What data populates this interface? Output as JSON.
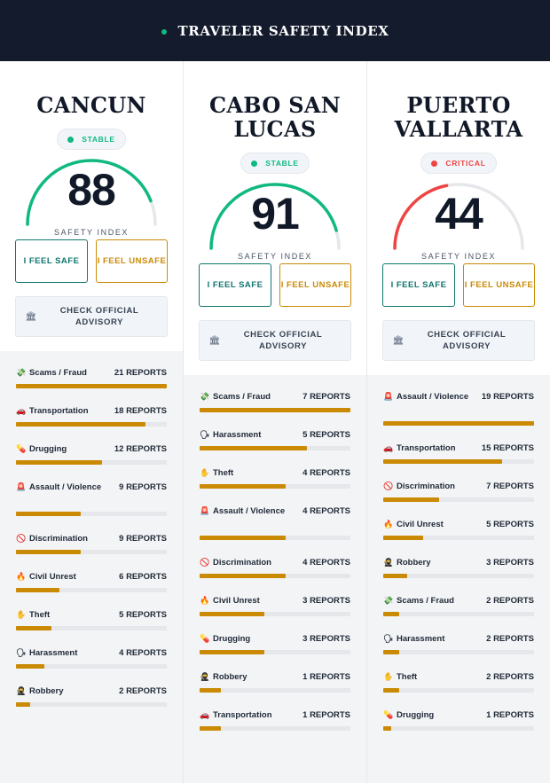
{
  "header": {
    "title": "TRAVELER SAFETY INDEX"
  },
  "colors": {
    "stable": "#10b981",
    "critical": "#ef4444",
    "bar": "#ca8a04",
    "track": "#e5e7eb"
  },
  "cities": [
    {
      "name": "CANCUN",
      "status": "STABLE",
      "status_type": "stable",
      "score": "88",
      "score_value": 88,
      "safety_label": "SAFETY INDEX",
      "feel_safe": "I FEEL SAFE",
      "feel_unsafe": "I FEEL UNSAFE",
      "advisory": "CHECK OFFICIAL ADVISORY",
      "advisory_icon": "bank-icon",
      "reports": [
        {
          "icon": "money-icon",
          "glyph": "💸",
          "label": "Scams / Fraud",
          "count": "21 REPORTS",
          "value": 21
        },
        {
          "icon": "car-icon",
          "glyph": "🚗",
          "label": "Transportation",
          "count": "18 REPORTS",
          "value": 18
        },
        {
          "icon": "pill-icon",
          "glyph": "💊",
          "label": "Drugging",
          "count": "12 REPORTS",
          "value": 12
        },
        {
          "icon": "alert-icon",
          "glyph": "🚨",
          "label": "Assault / Violence",
          "count": "9 REPORTS",
          "value": 9
        },
        {
          "icon": "prohibited-icon",
          "glyph": "🚫",
          "label": "Discrimination",
          "count": "9 REPORTS",
          "value": 9
        },
        {
          "icon": "fire-icon",
          "glyph": "🔥",
          "label": "Civil Unrest",
          "count": "6 REPORTS",
          "value": 6
        },
        {
          "icon": "hand-icon",
          "glyph": "✋",
          "label": "Theft",
          "count": "5 REPORTS",
          "value": 5
        },
        {
          "icon": "speaking-head-icon",
          "glyph": "🗣",
          "label": "Harassment",
          "count": "4 REPORTS",
          "value": 4
        },
        {
          "icon": "ninja-icon",
          "glyph": "🥷",
          "label": "Robbery",
          "count": "2 REPORTS",
          "value": 2
        }
      ]
    },
    {
      "name": "CABO SAN LUCAS",
      "status": "STABLE",
      "status_type": "stable",
      "score": "91",
      "score_value": 91,
      "safety_label": "SAFETY INDEX",
      "feel_safe": "I FEEL SAFE",
      "feel_unsafe": "I FEEL UNSAFE",
      "advisory": "CHECK OFFICIAL ADVISORY",
      "advisory_icon": "bank-icon",
      "reports": [
        {
          "icon": "money-icon",
          "glyph": "💸",
          "label": "Scams / Fraud",
          "count": "7 REPORTS",
          "value": 7
        },
        {
          "icon": "speaking-head-icon",
          "glyph": "🗣",
          "label": "Harassment",
          "count": "5 REPORTS",
          "value": 5
        },
        {
          "icon": "hand-icon",
          "glyph": "✋",
          "label": "Theft",
          "count": "4 REPORTS",
          "value": 4
        },
        {
          "icon": "alert-icon",
          "glyph": "🚨",
          "label": "Assault / Violence",
          "count": "4 REPORTS",
          "value": 4
        },
        {
          "icon": "prohibited-icon",
          "glyph": "🚫",
          "label": "Discrimination",
          "count": "4 REPORTS",
          "value": 4
        },
        {
          "icon": "fire-icon",
          "glyph": "🔥",
          "label": "Civil Unrest",
          "count": "3 REPORTS",
          "value": 3
        },
        {
          "icon": "pill-icon",
          "glyph": "💊",
          "label": "Drugging",
          "count": "3 REPORTS",
          "value": 3
        },
        {
          "icon": "ninja-icon",
          "glyph": "🥷",
          "label": "Robbery",
          "count": "1 REPORTS",
          "value": 1
        },
        {
          "icon": "car-icon",
          "glyph": "🚗",
          "label": "Transportation",
          "count": "1 REPORTS",
          "value": 1
        }
      ]
    },
    {
      "name": "PUERTO VALLARTA",
      "status": "CRITICAL",
      "status_type": "critical",
      "score": "44",
      "score_value": 44,
      "safety_label": "SAFETY INDEX",
      "feel_safe": "I FEEL SAFE",
      "feel_unsafe": "I FEEL UNSAFE",
      "advisory": "CHECK OFFICIAL ADVISORY",
      "advisory_icon": "bank-icon",
      "reports": [
        {
          "icon": "alert-icon",
          "glyph": "🚨",
          "label": "Assault / Violence",
          "count": "19 REPORTS",
          "value": 19
        },
        {
          "icon": "car-icon",
          "glyph": "🚗",
          "label": "Transportation",
          "count": "15 REPORTS",
          "value": 15
        },
        {
          "icon": "prohibited-icon",
          "glyph": "🚫",
          "label": "Discrimination",
          "count": "7 REPORTS",
          "value": 7
        },
        {
          "icon": "fire-icon",
          "glyph": "🔥",
          "label": "Civil Unrest",
          "count": "5 REPORTS",
          "value": 5
        },
        {
          "icon": "ninja-icon",
          "glyph": "🥷",
          "label": "Robbery",
          "count": "3 REPORTS",
          "value": 3
        },
        {
          "icon": "money-icon",
          "glyph": "💸",
          "label": "Scams / Fraud",
          "count": "2 REPORTS",
          "value": 2
        },
        {
          "icon": "speaking-head-icon",
          "glyph": "🗣",
          "label": "Harassment",
          "count": "2 REPORTS",
          "value": 2
        },
        {
          "icon": "hand-icon",
          "glyph": "✋",
          "label": "Theft",
          "count": "2 REPORTS",
          "value": 2
        },
        {
          "icon": "pill-icon",
          "glyph": "💊",
          "label": "Drugging",
          "count": "1 REPORTS",
          "value": 1
        }
      ]
    }
  ]
}
